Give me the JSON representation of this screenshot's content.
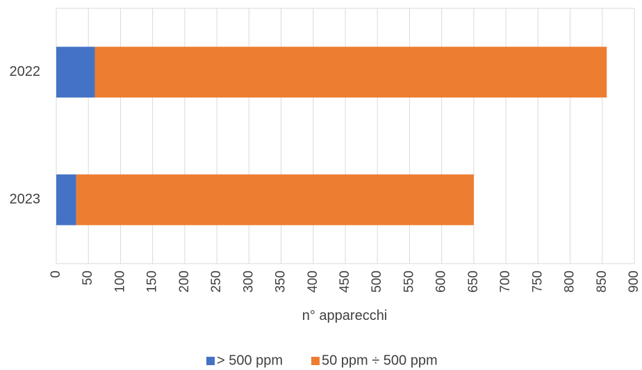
{
  "chart_data": {
    "type": "bar",
    "orientation": "horizontal",
    "stacked": true,
    "categories": [
      "2022",
      "2023"
    ],
    "series": [
      {
        "name": "> 500 ppm",
        "values": [
          60,
          31
        ]
      },
      {
        "name": "50 ppm ÷ 500 ppm",
        "values": [
          797,
          619
        ]
      }
    ],
    "xlabel": "n° apparecchi",
    "ylabel": "",
    "title": "",
    "xlim": [
      0,
      900
    ],
    "xticks": [
      "0",
      "50",
      "100",
      "150",
      "200",
      "250",
      "300",
      "350",
      "400",
      "450",
      "500",
      "550",
      "600",
      "650",
      "700",
      "750",
      "800",
      "850",
      "900"
    ],
    "grid": "vertical",
    "legend_position": "bottom",
    "colors": {
      "series0": "#4472C4",
      "series1": "#ED7D31",
      "grid": "#D9D9D9",
      "text": "#404040"
    }
  }
}
